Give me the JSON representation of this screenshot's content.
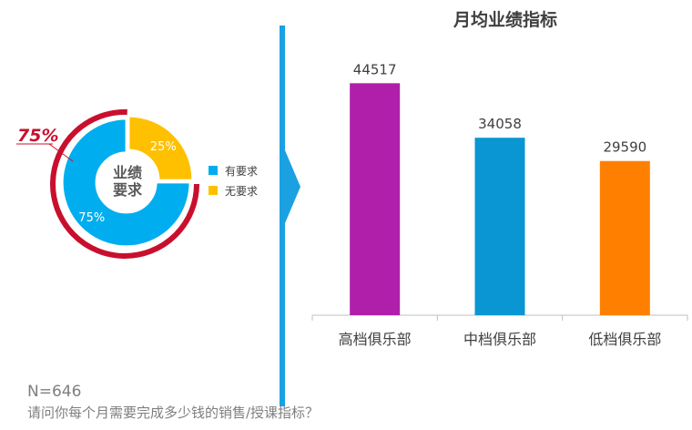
{
  "chart_data": [
    {
      "type": "pie",
      "variant": "donut",
      "center_label": [
        "业绩",
        "要求"
      ],
      "callout_value": "75%",
      "slices": [
        {
          "label": "有要求",
          "value": 75,
          "display": "75%",
          "color": "#00AEEF"
        },
        {
          "label": "无要求",
          "value": 25,
          "display": "25%",
          "color": "#FFC000"
        }
      ],
      "legend": {
        "position": "right",
        "items": [
          "有要求",
          "无要求"
        ]
      },
      "accent_ring_color": "#C8102E"
    },
    {
      "type": "bar",
      "title": "月均业绩指标",
      "categories": [
        "高档俱乐部",
        "中档俱乐部",
        "低档俱乐部"
      ],
      "values": [
        44517,
        34058,
        29590
      ],
      "value_labels": [
        "44517",
        "34058",
        "29590"
      ],
      "colors": [
        "#B01FAA",
        "#0A96D3",
        "#FF8000"
      ],
      "ylim": [
        0,
        50000
      ],
      "grid": false,
      "xlabel": "",
      "ylabel": ""
    }
  ],
  "footer": {
    "sample_size": "N=646",
    "question": "请问你每个月需要完成多少钱的销售/授课指标？"
  },
  "divider_color": "#1BA1E2"
}
